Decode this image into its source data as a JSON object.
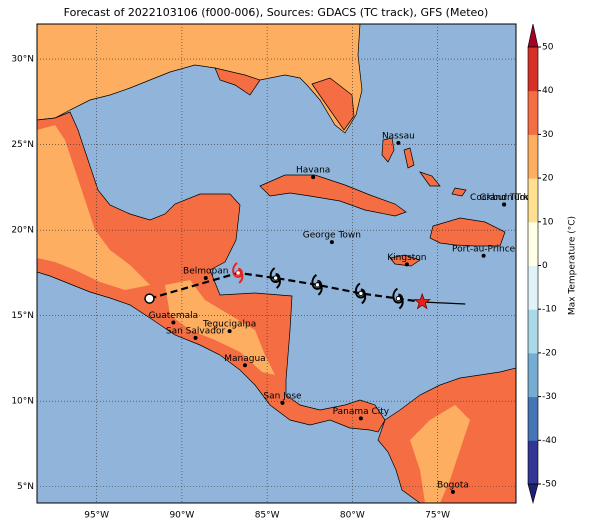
{
  "title": "Forecast of 2022103106 (f000-006), Sources: GDACS (TC track), GFS (Meteo)",
  "map": {
    "xlim": [
      -98.5,
      -70.4
    ],
    "ylim": [
      4.05,
      32.05
    ],
    "xticks": [
      {
        "value": -95,
        "label": "95°W"
      },
      {
        "value": -90,
        "label": "90°W"
      },
      {
        "value": -85,
        "label": "85°W"
      },
      {
        "value": -80,
        "label": "80°W"
      },
      {
        "value": -75,
        "label": "75°W"
      }
    ],
    "yticks": [
      {
        "value": 30,
        "label": "30°N"
      },
      {
        "value": 25,
        "label": "25°N"
      },
      {
        "value": 20,
        "label": "20°N"
      },
      {
        "value": 15,
        "label": "15°N"
      },
      {
        "value": 10,
        "label": "10°N"
      },
      {
        "value": 5,
        "label": "5°N"
      }
    ],
    "grid": true,
    "ocean_color": "#91b5da"
  },
  "cities": [
    {
      "name": "Nassau",
      "lon": -77.3,
      "lat": 25.1
    },
    {
      "name": "Havana",
      "lon": -82.3,
      "lat": 23.1
    },
    {
      "name": "Cockburn Town",
      "lon": -71.1,
      "lat": 21.5
    },
    {
      "name": "Grand Turk",
      "lon": -71.1,
      "lat": 21.5
    },
    {
      "name": "George Town",
      "lon": -81.2,
      "lat": 19.3
    },
    {
      "name": "Port-au-Prince",
      "lon": -72.3,
      "lat": 18.5
    },
    {
      "name": "Kingston",
      "lon": -76.8,
      "lat": 18.0
    },
    {
      "name": "Belmopan",
      "lon": -88.6,
      "lat": 17.2
    },
    {
      "name": "Guatemala",
      "lon": -90.5,
      "lat": 14.6
    },
    {
      "name": "Tegucigalpa",
      "lon": -87.2,
      "lat": 14.1
    },
    {
      "name": "San Salvador",
      "lon": -89.2,
      "lat": 13.7
    },
    {
      "name": "Managua",
      "lon": -86.3,
      "lat": 12.1
    },
    {
      "name": "San Jose",
      "lon": -84.1,
      "lat": 9.9
    },
    {
      "name": "Panama City",
      "lon": -79.5,
      "lat": 9.0
    },
    {
      "name": "Bogota",
      "lon": -74.1,
      "lat": 4.7
    }
  ],
  "track": {
    "lon": [
      -91.9,
      -86.7,
      -84.5,
      -82.05,
      -79.5,
      -77.3,
      -75.9
    ],
    "lat": [
      16.0,
      17.5,
      17.2,
      16.8,
      16.3,
      16.0,
      15.8
    ]
  },
  "colorbar": {
    "label": "Max Temperature (°C)",
    "lim": [
      -50,
      50
    ],
    "ticks": [
      -50,
      -40,
      -30,
      -20,
      -10,
      0,
      10,
      20,
      30,
      40,
      50
    ],
    "colors": [
      "#313695",
      "#4575b4",
      "#74add1",
      "#abd9e9",
      "#e0f3f8",
      "#ffffe5",
      "#fee090",
      "#fdae61",
      "#f46d43",
      "#d73027"
    ],
    "under_color": "#1e2070",
    "over_color": "#a50026"
  }
}
